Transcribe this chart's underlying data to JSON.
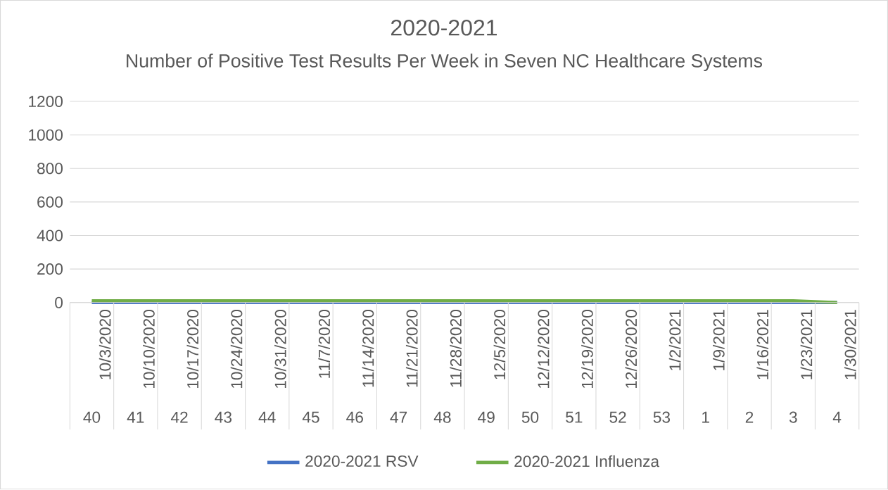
{
  "chart_data": {
    "type": "line",
    "title": "2020-2021",
    "subtitle": "Number of Positive Test Results Per Week in Seven NC Healthcare Systems",
    "categories": [
      "10/3/2020",
      "10/10/2020",
      "10/17/2020",
      "10/24/2020",
      "10/31/2020",
      "11/7/2020",
      "11/14/2020",
      "11/21/2020",
      "11/28/2020",
      "12/5/2020",
      "12/12/2020",
      "12/19/2020",
      "12/26/2020",
      "1/2/2021",
      "1/9/2021",
      "1/16/2021",
      "1/23/2021",
      "1/30/2021"
    ],
    "annotations": [
      "40",
      "41",
      "42",
      "43",
      "44",
      "45",
      "46",
      "47",
      "48",
      "49",
      "50",
      "51",
      "52",
      "53",
      "1",
      "2",
      "3",
      "4"
    ],
    "series": [
      {
        "name": "2020-2021  RSV",
        "color": "#4472c4",
        "values": [
          0,
          0,
          0,
          0,
          0,
          0,
          0,
          0,
          0,
          0,
          0,
          0,
          0,
          0,
          0,
          0,
          0,
          0
        ]
      },
      {
        "name": "2020-2021 Influenza",
        "color": "#70ad47",
        "values": [
          10,
          10,
          10,
          10,
          10,
          10,
          10,
          10,
          10,
          10,
          10,
          10,
          10,
          10,
          10,
          10,
          10,
          0
        ]
      }
    ],
    "ylim": [
      0,
      1200
    ],
    "yticks": [
      0,
      200,
      400,
      600,
      800,
      1000,
      1200
    ],
    "grid": "y",
    "legend": "bottom",
    "marker": "none",
    "line_style": "solid"
  }
}
